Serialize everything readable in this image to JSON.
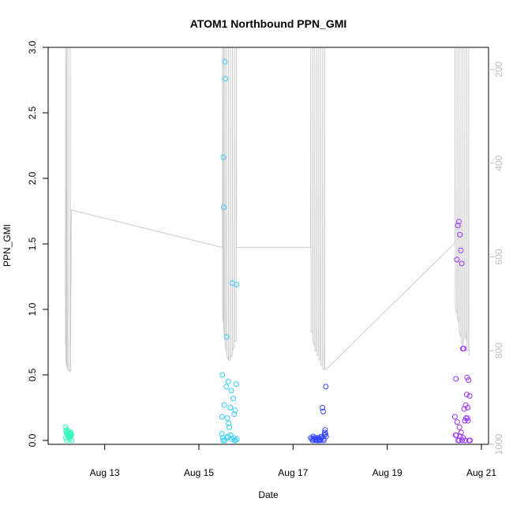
{
  "chart_data": {
    "type": "scatter",
    "title": "ATOM1 Northbound PPN_GMI",
    "xlabel": "Date",
    "ylabel": "PPN_GMI",
    "xlim": [
      "2024-08-12T00:00",
      "2024-08-21T00:00"
    ],
    "ylim": [
      0,
      3.0
    ],
    "x_ticks": [
      {
        "label": "Aug 13",
        "value": "2024-08-13T00:00"
      },
      {
        "label": "Aug 15",
        "value": "2024-08-15T00:00"
      },
      {
        "label": "Aug 17",
        "value": "2024-08-17T00:00"
      },
      {
        "label": "Aug 19",
        "value": "2024-08-19T00:00"
      },
      {
        "label": "Aug 21",
        "value": "2024-08-21T00:00"
      }
    ],
    "y_ticks": [
      {
        "label": "0.0",
        "value": 0
      },
      {
        "label": "0.5",
        "value": 0.5
      },
      {
        "label": "1.0",
        "value": 1.0
      },
      {
        "label": "1.5",
        "value": 1.5
      },
      {
        "label": "2.0",
        "value": 2.0
      },
      {
        "label": "2.5",
        "value": 2.5
      },
      {
        "label": "3.0",
        "value": 3.0
      }
    ],
    "y2_ticks": [
      {
        "label": "200",
        "value": 200
      },
      {
        "label": "400",
        "value": 400
      },
      {
        "label": "600",
        "value": 600
      },
      {
        "label": "800",
        "value": 800
      },
      {
        "label": "1000",
        "value": 1000
      }
    ],
    "y2_range_top_to_bottom": [
      50,
      1000
    ],
    "grid": false,
    "colors": {
      "line": "#cccccc",
      "axis": "#000000",
      "right_axis": "#bebebe"
    },
    "series": [
      {
        "color": "#33ffbb",
        "x": [
          "2024-08-12T04:00",
          "2024-08-12T04:20",
          "2024-08-12T04:40",
          "2024-08-12T05:00",
          "2024-08-12T05:20",
          "2024-08-12T05:40",
          "2024-08-12T06:00",
          "2024-08-12T06:20",
          "2024-08-12T06:40",
          "2024-08-12T07:00",
          "2024-08-12T04:10",
          "2024-08-12T04:50",
          "2024-08-12T05:30",
          "2024-08-12T06:10",
          "2024-08-12T06:50",
          "2024-08-12T07:10",
          "2024-08-12T04:30",
          "2024-08-12T05:10",
          "2024-08-12T05:50",
          "2024-08-12T06:30"
        ],
        "y": [
          0.1,
          0.07,
          0.05,
          0.06,
          0.04,
          0.07,
          0.05,
          0.03,
          0.06,
          0.04,
          0.02,
          0.0,
          0.03,
          0.01,
          0.05,
          0.0,
          0.08,
          0.06,
          0.02,
          0.04
        ]
      },
      {
        "color": "#33ccff",
        "x": [
          "2024-08-15T12:00",
          "2024-08-15T13:00",
          "2024-08-15T14:00",
          "2024-08-15T15:00",
          "2024-08-15T16:00",
          "2024-08-15T18:00",
          "2024-08-15T19:00",
          "2024-08-15T13:30",
          "2024-08-15T14:30",
          "2024-08-15T17:00",
          "2024-08-15T12:30",
          "2024-08-15T15:30",
          "2024-08-15T16:30",
          "2024-08-15T17:30",
          "2024-08-15T18:30",
          "2024-08-15T13:20",
          "2024-08-15T14:10",
          "2024-08-15T11:50",
          "2024-08-15T15:10",
          "2024-08-15T12:40",
          "2024-08-15T16:10",
          "2024-08-15T19:10",
          "2024-08-15T18:10",
          "2024-08-15T11:40",
          "2024-08-15T12:10",
          "2024-08-15T13:10",
          "2024-08-15T14:40",
          "2024-08-15T16:40",
          "2024-08-15T17:40",
          "2024-08-15T18:40",
          "2024-08-15T19:20",
          "2024-08-15T12:20",
          "2024-08-15T14:20"
        ],
        "y": [
          0.5,
          0.27,
          0.41,
          0.45,
          0.25,
          0.2,
          0.43,
          2.76,
          0.17,
          1.2,
          2.16,
          0.1,
          0.38,
          0.32,
          0.23,
          2.89,
          0.79,
          0.18,
          0.13,
          1.78,
          0.04,
          1.19,
          0.0,
          0.05,
          0.02,
          0.0,
          0.03,
          0.01,
          0.02,
          0.0,
          0.01,
          0.0,
          0.02
        ]
      },
      {
        "color": "#3344ff",
        "x": [
          "2024-08-17T09:00",
          "2024-08-17T09:30",
          "2024-08-17T10:00",
          "2024-08-17T10:30",
          "2024-08-17T11:00",
          "2024-08-17T11:30",
          "2024-08-17T12:00",
          "2024-08-17T12:30",
          "2024-08-17T13:00",
          "2024-08-17T13:30",
          "2024-08-17T14:00",
          "2024-08-17T14:30",
          "2024-08-17T15:00",
          "2024-08-17T15:30",
          "2024-08-17T16:00",
          "2024-08-17T16:20",
          "2024-08-17T16:40",
          "2024-08-17T13:20",
          "2024-08-17T14:20",
          "2024-08-17T15:20",
          "2024-08-17T16:10",
          "2024-08-17T10:20",
          "2024-08-17T12:20",
          "2024-08-17T13:40",
          "2024-08-17T14:40",
          "2024-08-17T15:40",
          "2024-08-17T16:30",
          "2024-08-17T11:40",
          "2024-08-17T16:50"
        ],
        "y": [
          0.02,
          0.01,
          0.0,
          0.01,
          0.02,
          0.0,
          0.01,
          0.0,
          0.02,
          0.01,
          0.0,
          0.02,
          0.25,
          0.01,
          0.04,
          0.08,
          0.41,
          0.0,
          0.03,
          0.22,
          0.06,
          0.03,
          0.02,
          0.01,
          0.02,
          0.0,
          0.05,
          0.01,
          0.03
        ]
      },
      {
        "color": "#9933ff",
        "x": [
          "2024-08-20T10:30",
          "2024-08-20T11:00",
          "2024-08-20T11:30",
          "2024-08-20T12:00",
          "2024-08-20T12:30",
          "2024-08-20T13:00",
          "2024-08-20T13:30",
          "2024-08-20T14:00",
          "2024-08-20T14:30",
          "2024-08-20T15:00",
          "2024-08-20T15:30",
          "2024-08-20T16:00",
          "2024-08-20T16:30",
          "2024-08-20T17:00",
          "2024-08-20T17:30",
          "2024-08-20T18:00",
          "2024-08-20T11:10",
          "2024-08-20T11:40",
          "2024-08-20T12:10",
          "2024-08-20T12:40",
          "2024-08-20T13:10",
          "2024-08-20T13:40",
          "2024-08-20T14:10",
          "2024-08-20T14:40",
          "2024-08-20T15:10",
          "2024-08-20T16:10",
          "2024-08-20T16:40",
          "2024-08-20T17:10",
          "2024-08-20T17:40",
          "2024-08-20T10:50",
          "2024-08-20T12:50",
          "2024-08-20T15:40",
          "2024-08-20T16:50",
          "2024-08-20T18:10"
        ],
        "y": [
          0.18,
          0.47,
          1.38,
          1.64,
          1.67,
          1.57,
          1.45,
          1.35,
          0.7,
          0.7,
          0.15,
          0.27,
          0.35,
          0.25,
          0.46,
          0.34,
          0.04,
          0.14,
          0.0,
          0.0,
          0.03,
          0.06,
          0.0,
          0.02,
          0.24,
          0.17,
          0.48,
          0.15,
          0.0,
          0.04,
          0.1,
          0.0,
          0.17,
          0.0
        ]
      }
    ],
    "line_y2": {
      "color": "#cccccc",
      "x": [
        "2024-08-12T04:00",
        "2024-08-12T04:05",
        "2024-08-12T04:10",
        "2024-08-12T04:30",
        "2024-08-12T04:35",
        "2024-08-12T04:40",
        "2024-08-12T05:10",
        "2024-08-12T05:15",
        "2024-08-12T05:20",
        "2024-08-12T06:20",
        "2024-08-12T06:25",
        "2024-08-12T06:30",
        "2024-08-12T07:00",
        "2024-08-15T12:00",
        "2024-08-15T12:05",
        "2024-08-15T12:10",
        "2024-08-15T12:30",
        "2024-08-15T12:35",
        "2024-08-15T12:40",
        "2024-08-15T13:10",
        "2024-08-15T13:15",
        "2024-08-15T13:20",
        "2024-08-15T14:00",
        "2024-08-15T14:05",
        "2024-08-15T14:10",
        "2024-08-15T15:00",
        "2024-08-15T15:05",
        "2024-08-15T15:10",
        "2024-08-15T16:00",
        "2024-08-15T16:05",
        "2024-08-15T16:10",
        "2024-08-15T17:00",
        "2024-08-15T17:05",
        "2024-08-15T17:10",
        "2024-08-15T18:00",
        "2024-08-15T18:05",
        "2024-08-15T18:10",
        "2024-08-15T19:00",
        "2024-08-15T19:05",
        "2024-08-15T19:10",
        "2024-08-17T09:00",
        "2024-08-17T09:05",
        "2024-08-17T09:10",
        "2024-08-17T10:00",
        "2024-08-17T10:05",
        "2024-08-17T10:10",
        "2024-08-17T11:00",
        "2024-08-17T11:05",
        "2024-08-17T11:10",
        "2024-08-17T12:00",
        "2024-08-17T12:05",
        "2024-08-17T12:10",
        "2024-08-17T13:00",
        "2024-08-17T13:05",
        "2024-08-17T13:10",
        "2024-08-17T14:00",
        "2024-08-17T14:05",
        "2024-08-17T14:10",
        "2024-08-17T15:00",
        "2024-08-17T15:05",
        "2024-08-17T15:10",
        "2024-08-17T16:00",
        "2024-08-17T16:05",
        "2024-08-17T16:10",
        "2024-08-17T16:50",
        "2024-08-20T10:30",
        "2024-08-20T10:35",
        "2024-08-20T10:40",
        "2024-08-20T11:30",
        "2024-08-20T11:35",
        "2024-08-20T11:40",
        "2024-08-20T12:30",
        "2024-08-20T12:35",
        "2024-08-20T12:40",
        "2024-08-20T13:30",
        "2024-08-20T13:35",
        "2024-08-20T13:40",
        "2024-08-20T14:30",
        "2024-08-20T14:35",
        "2024-08-20T14:40",
        "2024-08-20T15:30",
        "2024-08-20T15:35",
        "2024-08-20T15:40",
        "2024-08-20T16:30",
        "2024-08-20T16:35",
        "2024-08-20T16:40",
        "2024-08-20T17:30",
        "2024-08-20T17:35",
        "2024-08-20T17:40",
        "2024-08-20T18:10"
      ],
      "y2": [
        790,
        50,
        820,
        830,
        50,
        830,
        840,
        50,
        840,
        845,
        50,
        845,
        500,
        580,
        50,
        735,
        740,
        50,
        760,
        770,
        50,
        790,
        800,
        50,
        810,
        820,
        50,
        820,
        820,
        50,
        815,
        810,
        50,
        800,
        790,
        50,
        780,
        780,
        50,
        580,
        580,
        50,
        760,
        760,
        50,
        780,
        790,
        50,
        800,
        800,
        50,
        810,
        810,
        50,
        820,
        820,
        50,
        830,
        830,
        50,
        840,
        840,
        50,
        840,
        840,
        570,
        50,
        710,
        720,
        50,
        730,
        740,
        50,
        760,
        770,
        50,
        780,
        790,
        50,
        780,
        770,
        50,
        760,
        780,
        50,
        800,
        800,
        50,
        810,
        810
      ]
    }
  }
}
